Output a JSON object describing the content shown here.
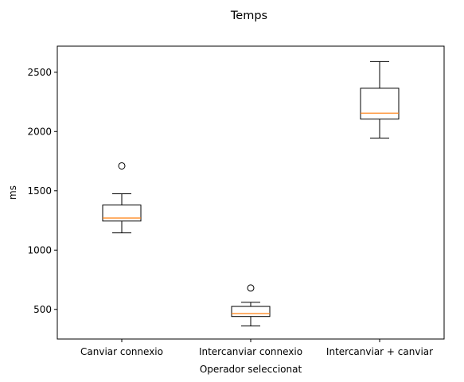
{
  "chart_data": {
    "type": "boxplot",
    "title": "Temps",
    "xlabel": "Operador seleccionat",
    "ylabel": "ms",
    "ylim": [
      250,
      2720
    ],
    "yticks": [
      500,
      1000,
      1500,
      2000,
      2500
    ],
    "grid": false,
    "categories": [
      "Canviar connexio",
      "Intercanviar connexio",
      "Intercanviar + canviar"
    ],
    "boxes": [
      {
        "whisker_low": 1145,
        "q1": 1245,
        "median": 1270,
        "q3": 1380,
        "whisker_high": 1475,
        "outliers": [
          1710
        ]
      },
      {
        "whisker_low": 360,
        "q1": 440,
        "median": 465,
        "q3": 525,
        "whisker_high": 560,
        "outliers": [
          680
        ]
      },
      {
        "whisker_low": 1945,
        "q1": 2105,
        "median": 2155,
        "q3": 2365,
        "whisker_high": 2590,
        "outliers": []
      }
    ],
    "colors": {
      "box": "#000000",
      "median": "#ff7f0e",
      "outlier": "#000000"
    }
  }
}
